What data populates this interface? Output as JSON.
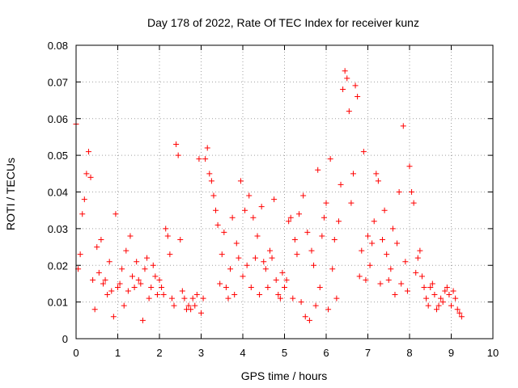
{
  "chart_data": {
    "type": "scatter",
    "title": "Day 178 of 2022, Rate Of TEC Index for receiver kunz",
    "xlabel": "GPS time / hours",
    "ylabel": "ROTI / TECUs",
    "xlim": [
      0,
      10
    ],
    "ylim": [
      0,
      0.08
    ],
    "x_ticks": [
      "0",
      "1",
      "2",
      "3",
      "4",
      "5",
      "6",
      "7",
      "8",
      "9",
      "10"
    ],
    "y_ticks": [
      "0",
      "0.01",
      "0.02",
      "0.03",
      "0.04",
      "0.05",
      "0.06",
      "0.07",
      "0.08"
    ],
    "grid": true,
    "marker": "+",
    "color": "#ff0000",
    "series": [
      {
        "x": [
          0.0,
          0.05,
          0.1,
          0.15,
          0.2,
          0.25,
          0.3,
          0.35,
          0.4,
          0.45,
          0.5,
          0.55,
          0.6,
          0.65,
          0.7,
          0.75,
          0.8,
          0.85,
          0.9,
          0.95,
          1.0,
          1.05,
          1.1,
          1.15,
          1.2,
          1.25,
          1.3,
          1.35,
          1.4,
          1.45,
          1.5,
          1.55,
          1.6,
          1.65,
          1.7,
          1.75,
          1.8,
          1.85,
          1.9,
          1.95,
          2.0,
          2.05,
          2.1,
          2.15,
          2.2,
          2.25,
          2.3,
          2.35,
          2.4,
          2.45,
          2.5,
          2.55,
          2.6,
          2.65,
          2.7,
          2.75,
          2.8,
          2.85,
          2.9,
          2.95,
          3.0,
          3.05,
          3.1,
          3.15,
          3.2,
          3.25,
          3.3,
          3.35,
          3.4,
          3.45,
          3.5,
          3.55,
          3.6,
          3.65,
          3.7,
          3.75,
          3.8,
          3.85,
          3.9,
          3.95,
          4.0,
          4.05,
          4.1,
          4.15,
          4.2,
          4.25,
          4.3,
          4.35,
          4.4,
          4.45,
          4.5,
          4.55,
          4.6,
          4.65,
          4.7,
          4.75,
          4.8,
          4.85,
          4.9,
          4.95,
          5.0,
          5.05,
          5.1,
          5.15,
          5.2,
          5.25,
          5.3,
          5.35,
          5.4,
          5.45,
          5.5,
          5.55,
          5.6,
          5.65,
          5.7,
          5.75,
          5.8,
          5.85,
          5.9,
          5.95,
          6.0,
          6.05,
          6.1,
          6.15,
          6.2,
          6.25,
          6.3,
          6.35,
          6.4,
          6.45,
          6.5,
          6.55,
          6.6,
          6.65,
          6.7,
          6.75,
          6.8,
          6.85,
          6.9,
          6.95,
          7.0,
          7.05,
          7.1,
          7.15,
          7.2,
          7.25,
          7.3,
          7.35,
          7.4,
          7.45,
          7.5,
          7.55,
          7.6,
          7.65,
          7.7,
          7.75,
          7.8,
          7.85,
          7.9,
          7.95,
          8.0,
          8.05,
          8.1,
          8.15,
          8.2,
          8.25,
          8.3,
          8.35,
          8.4,
          8.45,
          8.5,
          8.55,
          8.6,
          8.65,
          8.7,
          8.75,
          8.8,
          8.85,
          8.9,
          8.95,
          9.0,
          9.05,
          9.1,
          9.15,
          9.2,
          9.25
        ],
        "y": [
          0.0585,
          0.019,
          0.023,
          0.034,
          0.038,
          0.045,
          0.051,
          0.044,
          0.016,
          0.008,
          0.025,
          0.018,
          0.027,
          0.015,
          0.016,
          0.012,
          0.021,
          0.013,
          0.006,
          0.034,
          0.014,
          0.015,
          0.019,
          0.009,
          0.024,
          0.013,
          0.028,
          0.017,
          0.014,
          0.021,
          0.016,
          0.015,
          0.005,
          0.019,
          0.022,
          0.011,
          0.014,
          0.02,
          0.017,
          0.012,
          0.016,
          0.014,
          0.012,
          0.03,
          0.028,
          0.023,
          0.011,
          0.009,
          0.053,
          0.05,
          0.027,
          0.013,
          0.011,
          0.008,
          0.009,
          0.008,
          0.011,
          0.009,
          0.012,
          0.049,
          0.007,
          0.011,
          0.049,
          0.052,
          0.045,
          0.043,
          0.039,
          0.035,
          0.031,
          0.015,
          0.023,
          0.029,
          0.014,
          0.011,
          0.019,
          0.033,
          0.012,
          0.026,
          0.022,
          0.043,
          0.017,
          0.035,
          0.02,
          0.039,
          0.014,
          0.033,
          0.022,
          0.028,
          0.012,
          0.036,
          0.021,
          0.019,
          0.014,
          0.024,
          0.022,
          0.038,
          0.016,
          0.012,
          0.011,
          0.018,
          0.014,
          0.016,
          0.032,
          0.033,
          0.011,
          0.027,
          0.023,
          0.034,
          0.01,
          0.039,
          0.006,
          0.029,
          0.005,
          0.024,
          0.02,
          0.009,
          0.046,
          0.014,
          0.028,
          0.033,
          0.037,
          0.008,
          0.049,
          0.019,
          0.027,
          0.011,
          0.032,
          0.042,
          0.068,
          0.073,
          0.071,
          0.062,
          0.037,
          0.045,
          0.069,
          0.066,
          0.017,
          0.024,
          0.051,
          0.016,
          0.028,
          0.02,
          0.026,
          0.032,
          0.045,
          0.043,
          0.015,
          0.027,
          0.035,
          0.023,
          0.016,
          0.019,
          0.03,
          0.012,
          0.026,
          0.04,
          0.015,
          0.058,
          0.021,
          0.013,
          0.047,
          0.04,
          0.037,
          0.018,
          0.022,
          0.024,
          0.017,
          0.014,
          0.011,
          0.009,
          0.014,
          0.015,
          0.012,
          0.008,
          0.009,
          0.011,
          0.01,
          0.013,
          0.014,
          0.012,
          0.009,
          0.013,
          0.011,
          0.008,
          0.007,
          0.006
        ]
      }
    ]
  }
}
